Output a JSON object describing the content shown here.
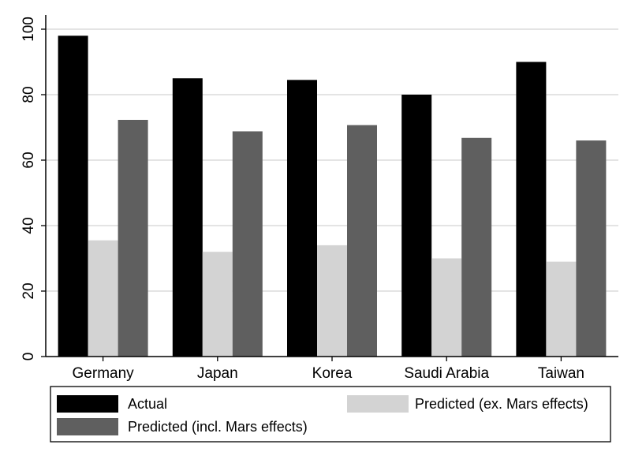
{
  "chart_data": {
    "type": "bar",
    "categories": [
      "Germany",
      "Japan",
      "Korea",
      "Saudi Arabia",
      "Taiwan"
    ],
    "series": [
      {
        "name": "Actual",
        "color": "#000000",
        "values": [
          98,
          85,
          84.5,
          80,
          90
        ]
      },
      {
        "name": "Predicted (ex. Mars effects)",
        "color": "#d3d3d3",
        "values": [
          35.5,
          32,
          34,
          30,
          29
        ]
      },
      {
        "name": "Predicted (incl. Mars effects)",
        "color": "#5f5f5f",
        "values": [
          72.3,
          68.8,
          70.7,
          66.8,
          66
        ]
      }
    ],
    "ylim": [
      0,
      100
    ],
    "yticks": [
      0,
      20,
      40,
      60,
      80,
      100
    ],
    "xlabel": "",
    "ylabel": "",
    "grid": true,
    "legend_position": "bottom",
    "background": "#ffffff",
    "grid_color": "#dcdcdc"
  }
}
